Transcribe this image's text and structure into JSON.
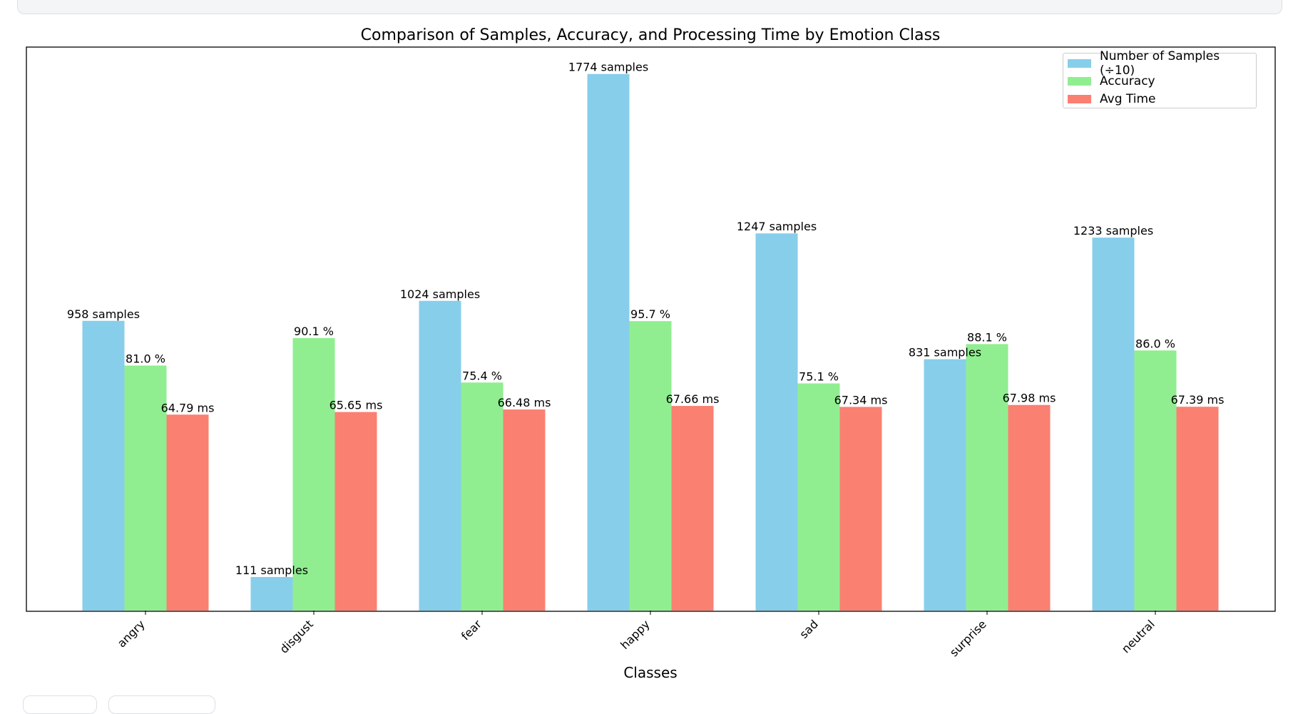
{
  "chart_data": {
    "type": "bar",
    "title": "Comparison of Samples, Accuracy, and Processing Time by Emotion Class",
    "xlabel": "Classes",
    "ylabel": "",
    "categories": [
      "angry",
      "disgust",
      "fear",
      "happy",
      "sad",
      "surprise",
      "neutral"
    ],
    "series": [
      {
        "name": "Number of Samples (÷10)",
        "color": "#87ceeb",
        "values": [
          95.8,
          11.1,
          102.4,
          177.4,
          124.7,
          83.1,
          123.3
        ],
        "labels": [
          "958 samples",
          "111 samples",
          "1024 samples",
          "1774 samples",
          "1247 samples",
          "831 samples",
          "1233 samples"
        ]
      },
      {
        "name": "Accuracy",
        "color": "#90ee90",
        "values": [
          81.0,
          90.1,
          75.4,
          95.7,
          75.1,
          88.1,
          86.0
        ],
        "labels": [
          "81.0 %",
          "90.1 %",
          "75.4 %",
          "95.7 %",
          "75.1 %",
          "88.1 %",
          "86.0 %"
        ]
      },
      {
        "name": "Avg Time",
        "color": "#fa8072",
        "values": [
          64.79,
          65.65,
          66.48,
          67.66,
          67.34,
          67.98,
          67.39
        ],
        "labels": [
          "64.79 ms",
          "65.65 ms",
          "66.48 ms",
          "67.66 ms",
          "67.34 ms",
          "67.98 ms",
          "67.39 ms"
        ]
      }
    ],
    "ylim": [
      0,
      186.3
    ],
    "grid": false,
    "legend_position": "top-right",
    "y_ticks_visible": false
  }
}
